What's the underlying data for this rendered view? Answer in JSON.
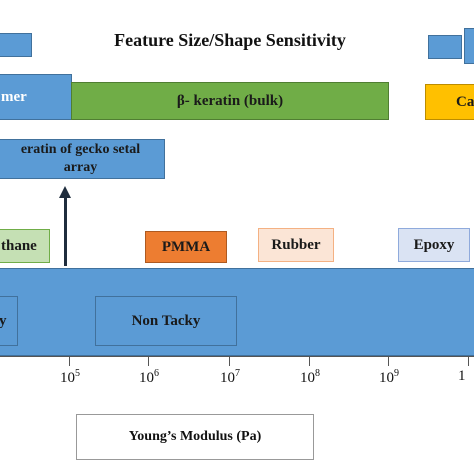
{
  "title": "Feature Size/Shape Sensitivity",
  "bars": {
    "elastomer": "mer",
    "beta_keratin": "β- keratin (bulk)",
    "gecko_line1": "eratin of gecko setal",
    "gecko_line2": "array",
    "partial_right": "Ca"
  },
  "materials": {
    "polyurethane": "thane",
    "pmma": "PMMA",
    "rubber": "Rubber",
    "epoxy": "Epoxy"
  },
  "tack": {
    "tacky": "y",
    "non_tacky": "Non Tacky"
  },
  "axis": {
    "title": "Young’s Modulus (Pa)",
    "tick_base": "10",
    "tick_exponents": [
      "",
      "5",
      "6",
      "7",
      "8",
      "9",
      ""
    ],
    "left_edge_label": "",
    "right_edge_label": "1"
  },
  "colors": {
    "blue": "#5b9bd5",
    "green": "#70ad47",
    "orange": "#ed7d31",
    "peach": "#fbe5d6",
    "yellow": "#ffc000",
    "light_green": "#c5e0b4",
    "light_blue": "#dae3f3"
  }
}
